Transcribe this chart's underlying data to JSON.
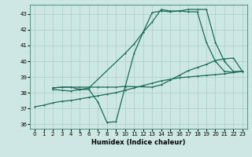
{
  "xlabel": "Humidex (Indice chaleur)",
  "xlim": [
    -0.5,
    23.5
  ],
  "ylim": [
    35.7,
    43.6
  ],
  "yticks": [
    36,
    37,
    38,
    39,
    40,
    41,
    42,
    43
  ],
  "xticks": [
    0,
    1,
    2,
    3,
    4,
    5,
    6,
    7,
    8,
    9,
    10,
    11,
    12,
    13,
    14,
    15,
    16,
    17,
    18,
    19,
    20,
    21,
    22,
    23
  ],
  "bg_color": "#cde8e2",
  "grid_color": "#a8cfc8",
  "line_color": "#1a6b5a",
  "line1_x": [
    0,
    1,
    2,
    3,
    4,
    5,
    6,
    7,
    8,
    9,
    10,
    11,
    12,
    13,
    14,
    15,
    16,
    17,
    18,
    19,
    20,
    21,
    22,
    23
  ],
  "line1_y": [
    37.1,
    37.2,
    37.35,
    37.45,
    37.5,
    37.6,
    37.7,
    37.8,
    37.9,
    38.0,
    38.15,
    38.3,
    38.45,
    38.6,
    38.75,
    38.85,
    38.95,
    39.0,
    39.05,
    39.1,
    39.15,
    39.2,
    39.28,
    39.35
  ],
  "line2_x": [
    2,
    3,
    4,
    5,
    6,
    7,
    8,
    9,
    10,
    13,
    14,
    15,
    16,
    17,
    18,
    19,
    20,
    21,
    22,
    23
  ],
  "line2_y": [
    38.3,
    38.35,
    38.35,
    38.35,
    38.35,
    38.35,
    38.35,
    38.35,
    38.4,
    38.35,
    38.5,
    38.8,
    39.1,
    39.4,
    39.6,
    39.8,
    40.05,
    40.15,
    40.2,
    39.35
  ],
  "line3_x": [
    2,
    3,
    4,
    5,
    6,
    7,
    8,
    9,
    10,
    11,
    12,
    13,
    14,
    15,
    16,
    17,
    18,
    19,
    20,
    21,
    22,
    23
  ],
  "line3_y": [
    38.3,
    38.35,
    38.35,
    38.2,
    38.2,
    37.4,
    36.1,
    36.15,
    38.35,
    40.5,
    41.85,
    43.1,
    43.2,
    43.15,
    43.2,
    43.15,
    43.15,
    41.2,
    40.0,
    39.35,
    39.3,
    39.35
  ],
  "line4_x": [
    2,
    3,
    4,
    5,
    6,
    10,
    11,
    12,
    13,
    14,
    15,
    16,
    17,
    18,
    19,
    20,
    21,
    22,
    23
  ],
  "line4_y": [
    38.2,
    38.15,
    38.1,
    38.2,
    38.3,
    40.5,
    41.1,
    41.85,
    42.5,
    43.3,
    43.2,
    43.2,
    43.3,
    43.3,
    43.3,
    41.2,
    40.0,
    39.35,
    39.35
  ]
}
